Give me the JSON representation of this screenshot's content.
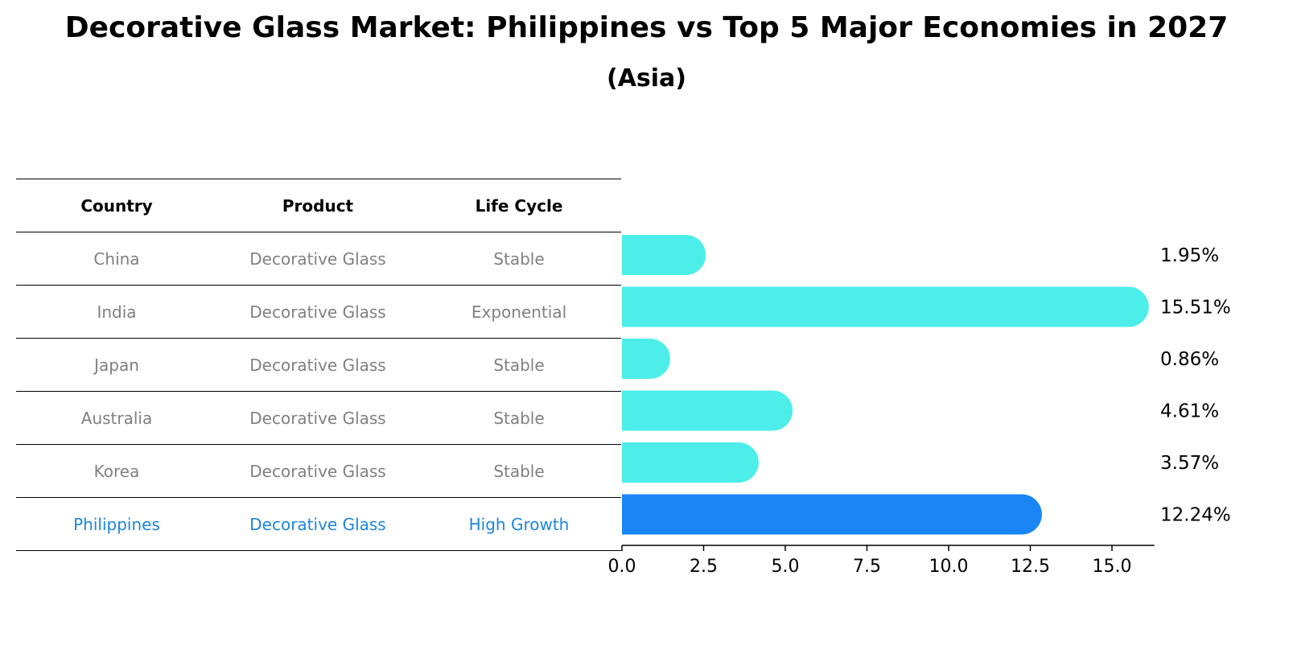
{
  "title": "Decorative Glass Market: Philippines vs Top 5 Major Economies in 2027",
  "subtitle": "(Asia)",
  "table": {
    "headers": [
      "Country",
      "Product",
      "Life Cycle"
    ],
    "rows": [
      {
        "country": "China",
        "product": "Decorative Glass",
        "life_cycle": "Stable"
      },
      {
        "country": "India",
        "product": "Decorative Glass",
        "life_cycle": "Exponential"
      },
      {
        "country": "Japan",
        "product": "Decorative Glass",
        "life_cycle": "Stable"
      },
      {
        "country": "Australia",
        "product": "Decorative Glass",
        "life_cycle": "Stable"
      },
      {
        "country": "Korea",
        "product": "Decorative Glass",
        "life_cycle": "Stable"
      },
      {
        "country": "Philippines",
        "product": "Decorative Glass",
        "life_cycle": "High Growth"
      }
    ]
  },
  "chart_data": {
    "type": "bar",
    "orientation": "horizontal",
    "categories": [
      "China",
      "India",
      "Japan",
      "Australia",
      "Korea",
      "Philippines"
    ],
    "values": [
      1.95,
      15.51,
      0.86,
      4.61,
      3.57,
      12.24
    ],
    "labels": [
      "1.95%",
      "15.51%",
      "0.86%",
      "4.61%",
      "3.57%",
      "12.24%"
    ],
    "xlim": [
      0,
      16.3
    ],
    "xticks": [
      0.0,
      2.5,
      5.0,
      7.5,
      10.0,
      12.5,
      15.0
    ],
    "xtick_labels": [
      "0.0",
      "2.5",
      "5.0",
      "7.5",
      "10.0",
      "12.5",
      "15.0"
    ],
    "highlight": "Philippines",
    "colors": {
      "default": "#4deeea",
      "highlight": "#1a86f5"
    }
  }
}
